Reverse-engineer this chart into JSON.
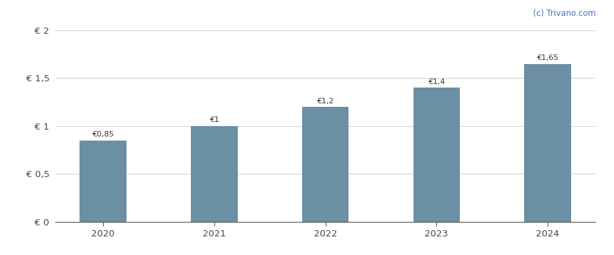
{
  "categories": [
    "2020",
    "2021",
    "2022",
    "2023",
    "2024"
  ],
  "values": [
    0.85,
    1.0,
    1.2,
    1.4,
    1.65
  ],
  "labels": [
    "€0,85",
    "€1",
    "€1,2",
    "€1,4",
    "€1,65"
  ],
  "bar_color": "#6b8fa3",
  "background_color": "#ffffff",
  "ylim": [
    0,
    2.05
  ],
  "yticks": [
    0,
    0.5,
    1.0,
    1.5,
    2.0
  ],
  "ytick_labels": [
    "€ 0",
    "€ 0,5",
    "€ 1",
    "€ 1,5",
    "€ 2"
  ],
  "watermark": "(c) Trivano.com",
  "watermark_color": "#4472c4",
  "grid_color": "#d0d0d0",
  "label_fontsize": 8.0,
  "tick_fontsize": 9.5,
  "watermark_fontsize": 8.5,
  "bar_width": 0.42
}
